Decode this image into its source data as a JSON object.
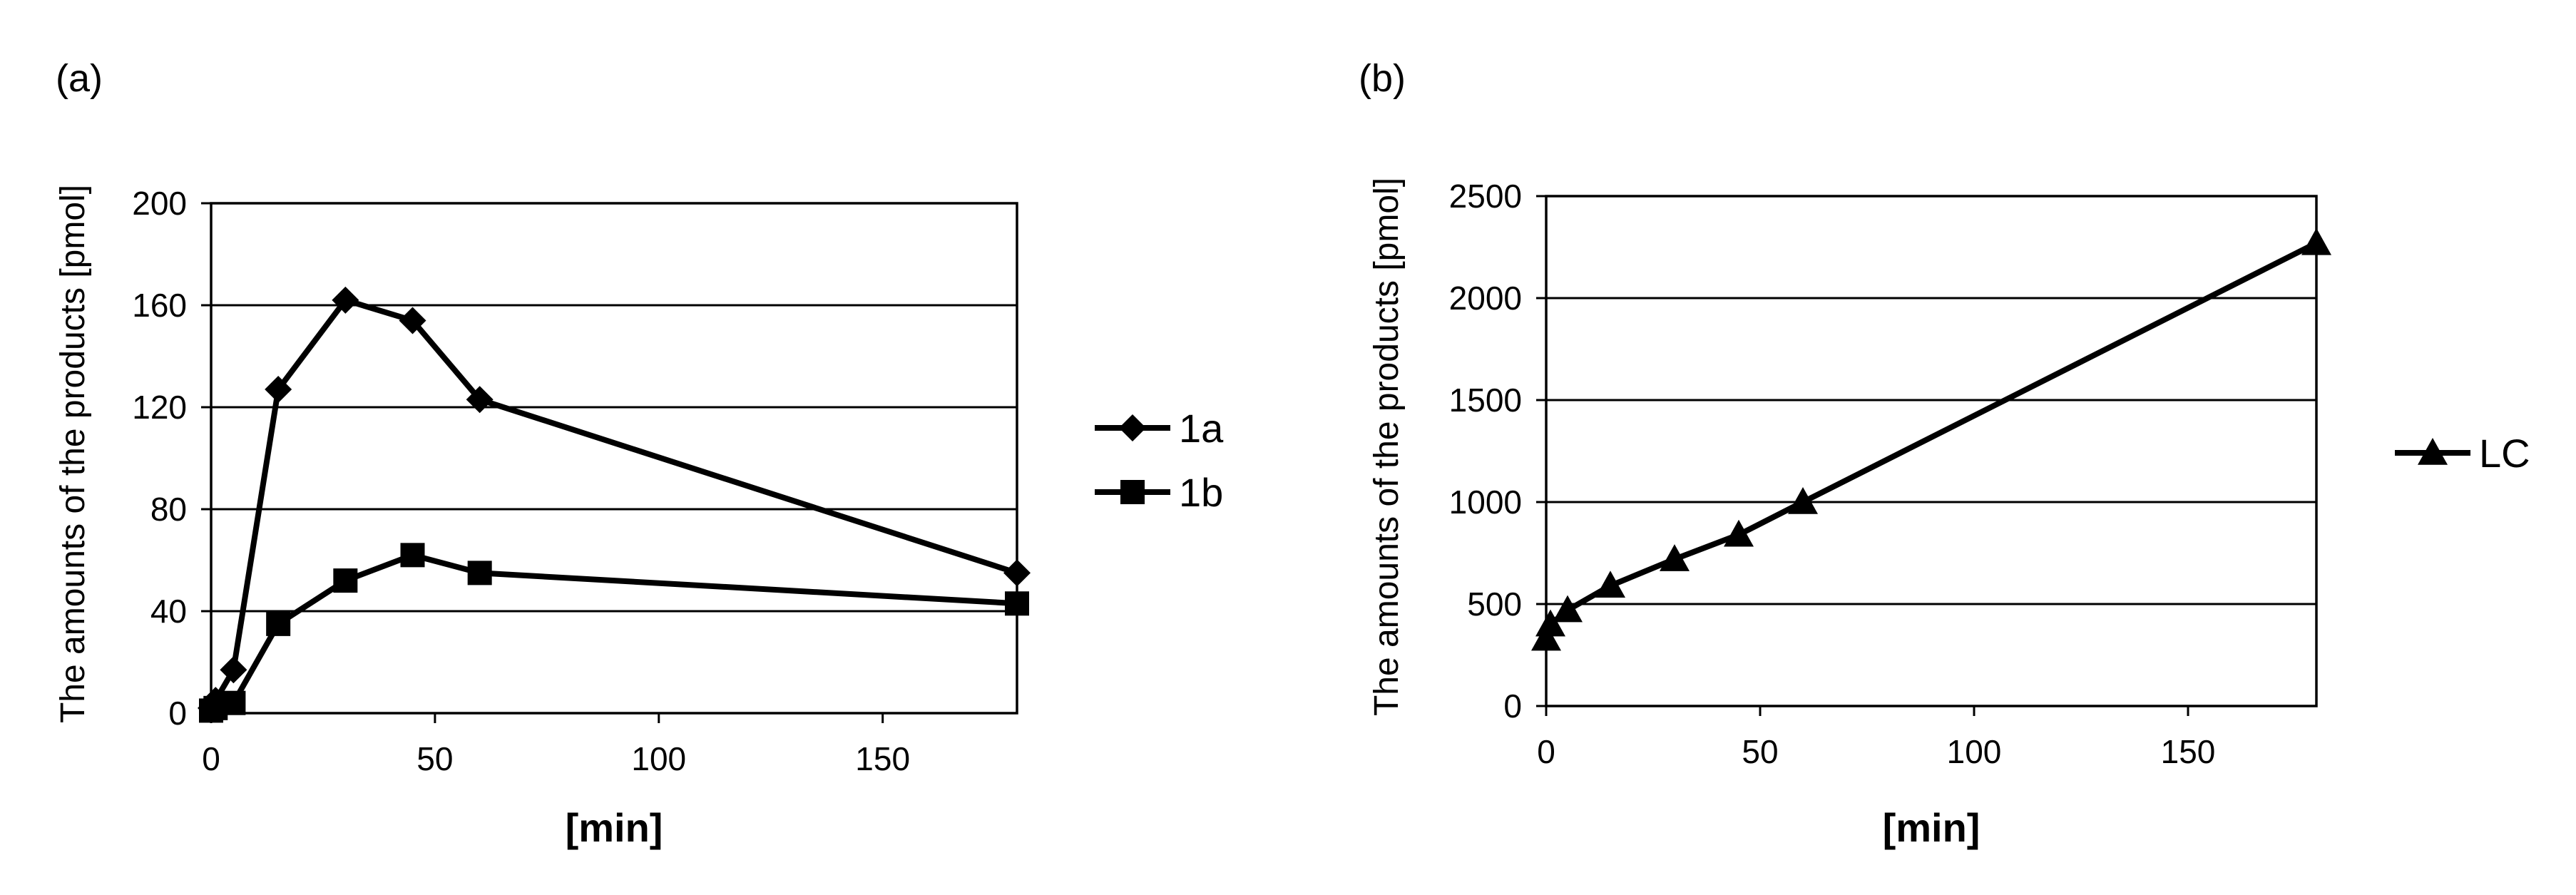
{
  "chart_data": [
    {
      "panel": "(a)",
      "type": "line",
      "xlabel": "[min]",
      "ylabel": "The amounts of the products [pmol]",
      "xlim": [
        0,
        180
      ],
      "ylim": [
        0,
        200
      ],
      "xticks": [
        0,
        50,
        100,
        150
      ],
      "yticks": [
        0,
        40,
        80,
        120,
        160,
        200
      ],
      "grid": "horizontal",
      "legend_position": "right",
      "series": [
        {
          "name": "1a",
          "marker": "diamond",
          "x": [
            0,
            1,
            5,
            15,
            30,
            45,
            60,
            180
          ],
          "y": [
            2,
            5,
            17,
            127,
            162,
            154,
            123,
            55
          ]
        },
        {
          "name": "1b",
          "marker": "square",
          "x": [
            0,
            1,
            5,
            15,
            30,
            45,
            60,
            180
          ],
          "y": [
            1,
            2,
            4,
            35,
            52,
            62,
            55,
            43
          ]
        }
      ]
    },
    {
      "panel": "(b)",
      "type": "line",
      "xlabel": "[min]",
      "ylabel": "The amounts of the products [pmol]",
      "xlim": [
        0,
        180
      ],
      "ylim": [
        0,
        2500
      ],
      "xticks": [
        0,
        50,
        100,
        150
      ],
      "yticks": [
        0,
        500,
        1000,
        1500,
        2000,
        2500
      ],
      "grid": "horizontal",
      "legend_position": "right",
      "series": [
        {
          "name": "LC",
          "marker": "triangle",
          "x": [
            0,
            1,
            5,
            15,
            30,
            45,
            60,
            180
          ],
          "y": [
            330,
            400,
            470,
            590,
            720,
            840,
            1000,
            2270
          ]
        }
      ]
    }
  ]
}
